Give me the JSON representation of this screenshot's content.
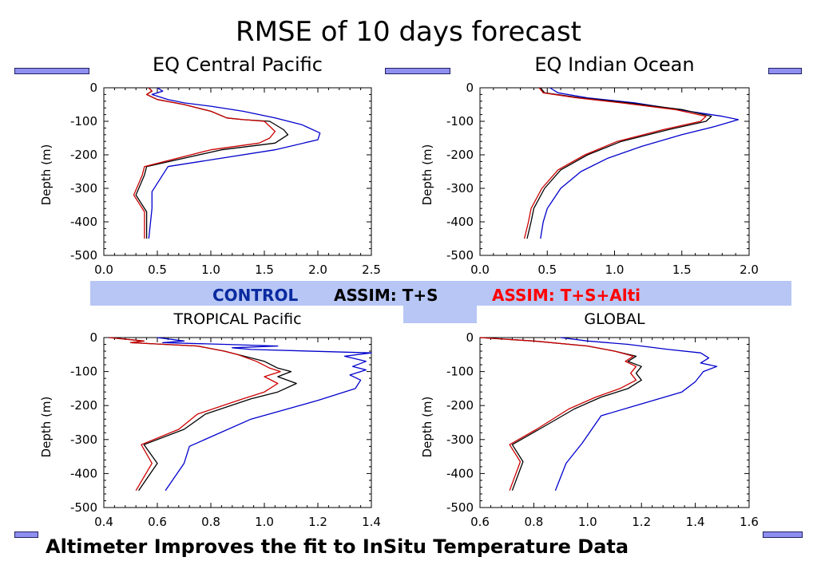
{
  "title": "RMSE of 10 days forecast",
  "legend": {
    "control": "CONTROL",
    "assim_ts": "ASSIM: T+S",
    "assim_alti": "ASSIM: T+S+Alti",
    "colors": {
      "control": "#0000cc",
      "assim_ts": "#000000",
      "assim_alti": "#cc0000"
    }
  },
  "footer": "Altimeter Improves the fit to InSitu Temperature Data",
  "chart_data": [
    {
      "type": "line",
      "title": "EQ Central Pacific",
      "ylabel": "Depth (m)",
      "xlim": [
        0.0,
        2.5
      ],
      "ylim": [
        -500,
        0
      ],
      "xticks": [
        "0.0",
        "0.5",
        "1.0",
        "1.5",
        "2.0",
        "2.5"
      ],
      "yticks": [
        "0",
        "-100",
        "-200",
        "-300",
        "-400",
        "-500"
      ],
      "series": [
        {
          "name": "CONTROL",
          "color": "#0000cc",
          "points": [
            [
              0.5,
              0
            ],
            [
              0.55,
              -10
            ],
            [
              0.45,
              -20
            ],
            [
              0.6,
              -35
            ],
            [
              0.75,
              -45
            ],
            [
              1.0,
              -55
            ],
            [
              1.3,
              -70
            ],
            [
              1.6,
              -90
            ],
            [
              1.85,
              -110
            ],
            [
              2.02,
              -135
            ],
            [
              2.0,
              -155
            ],
            [
              1.6,
              -185
            ],
            [
              0.6,
              -235
            ],
            [
              0.45,
              -310
            ],
            [
              0.45,
              -360
            ],
            [
              0.42,
              -450
            ]
          ]
        },
        {
          "name": "ASSIM: T+S",
          "color": "#000000",
          "points": [
            [
              0.42,
              0
            ],
            [
              0.45,
              -10
            ],
            [
              0.4,
              -20
            ],
            [
              0.5,
              -35
            ],
            [
              0.75,
              -50
            ],
            [
              1.0,
              -70
            ],
            [
              1.15,
              -90
            ],
            [
              1.3,
              -95
            ],
            [
              1.55,
              -100
            ],
            [
              1.68,
              -125
            ],
            [
              1.72,
              -140
            ],
            [
              1.6,
              -165
            ],
            [
              1.1,
              -185
            ],
            [
              0.4,
              -235
            ],
            [
              0.38,
              -260
            ],
            [
              0.3,
              -320
            ],
            [
              0.4,
              -370
            ],
            [
              0.4,
              -450
            ]
          ]
        },
        {
          "name": "ASSIM: T+S+Alti",
          "color": "#cc0000",
          "points": [
            [
              0.42,
              0
            ],
            [
              0.45,
              -10
            ],
            [
              0.4,
              -20
            ],
            [
              0.5,
              -35
            ],
            [
              0.75,
              -50
            ],
            [
              1.0,
              -70
            ],
            [
              1.15,
              -90
            ],
            [
              1.3,
              -95
            ],
            [
              1.5,
              -100
            ],
            [
              1.6,
              -130
            ],
            [
              1.55,
              -150
            ],
            [
              1.45,
              -165
            ],
            [
              1.0,
              -185
            ],
            [
              0.38,
              -235
            ],
            [
              0.36,
              -260
            ],
            [
              0.28,
              -320
            ],
            [
              0.38,
              -370
            ],
            [
              0.38,
              -450
            ]
          ]
        }
      ]
    },
    {
      "type": "line",
      "title": "EQ Indian Ocean",
      "ylabel": "Depth (m)",
      "xlim": [
        0.0,
        2.0
      ],
      "ylim": [
        -500,
        0
      ],
      "xticks": [
        "0.0",
        "0.5",
        "1.0",
        "1.5",
        "2.0"
      ],
      "yticks": [
        "0",
        "-100",
        "-200",
        "-300",
        "-400",
        "-500"
      ],
      "series": [
        {
          "name": "CONTROL",
          "color": "#0000cc",
          "points": [
            [
              0.52,
              0
            ],
            [
              0.58,
              -15
            ],
            [
              0.8,
              -30
            ],
            [
              1.15,
              -45
            ],
            [
              1.55,
              -70
            ],
            [
              1.8,
              -85
            ],
            [
              1.92,
              -95
            ],
            [
              1.75,
              -115
            ],
            [
              1.5,
              -140
            ],
            [
              1.2,
              -175
            ],
            [
              0.95,
              -210
            ],
            [
              0.75,
              -250
            ],
            [
              0.6,
              -300
            ],
            [
              0.5,
              -360
            ],
            [
              0.47,
              -400
            ],
            [
              0.45,
              -450
            ]
          ]
        },
        {
          "name": "ASSIM: T+S",
          "color": "#000000",
          "points": [
            [
              0.45,
              0
            ],
            [
              0.48,
              -15
            ],
            [
              0.75,
              -30
            ],
            [
              1.1,
              -45
            ],
            [
              1.5,
              -65
            ],
            [
              1.72,
              -85
            ],
            [
              1.68,
              -100
            ],
            [
              1.4,
              -125
            ],
            [
              1.05,
              -160
            ],
            [
              0.8,
              -200
            ],
            [
              0.6,
              -245
            ],
            [
              0.48,
              -300
            ],
            [
              0.4,
              -360
            ],
            [
              0.38,
              -400
            ],
            [
              0.35,
              -450
            ]
          ]
        },
        {
          "name": "ASSIM: T+S+Alti",
          "color": "#cc0000",
          "points": [
            [
              0.44,
              0
            ],
            [
              0.47,
              -15
            ],
            [
              0.72,
              -30
            ],
            [
              1.05,
              -45
            ],
            [
              1.45,
              -65
            ],
            [
              1.68,
              -85
            ],
            [
              1.64,
              -100
            ],
            [
              1.36,
              -125
            ],
            [
              1.02,
              -160
            ],
            [
              0.78,
              -200
            ],
            [
              0.58,
              -245
            ],
            [
              0.46,
              -300
            ],
            [
              0.38,
              -360
            ],
            [
              0.36,
              -400
            ],
            [
              0.33,
              -450
            ]
          ]
        }
      ]
    },
    {
      "type": "line",
      "title": "TROPICAL Pacific",
      "ylabel": "Depth (m)",
      "xlim": [
        0.4,
        1.4
      ],
      "ylim": [
        -500,
        0
      ],
      "xticks": [
        "0.4",
        "0.6",
        "0.8",
        "1.0",
        "1.2",
        "1.4"
      ],
      "yticks": [
        "0",
        "-100",
        "-200",
        "-300",
        "-400",
        "-500"
      ],
      "series": [
        {
          "name": "CONTROL",
          "color": "#0000cc",
          "points": [
            [
              0.6,
              0
            ],
            [
              0.7,
              -10
            ],
            [
              0.62,
              -15
            ],
            [
              0.85,
              -20
            ],
            [
              1.05,
              -25
            ],
            [
              0.88,
              -30
            ],
            [
              0.95,
              -35
            ],
            [
              1.4,
              -45
            ],
            [
              1.3,
              -55
            ],
            [
              1.38,
              -70
            ],
            [
              1.33,
              -85
            ],
            [
              1.38,
              -95
            ],
            [
              1.32,
              -110
            ],
            [
              1.36,
              -125
            ],
            [
              1.34,
              -150
            ],
            [
              1.2,
              -185
            ],
            [
              0.95,
              -240
            ],
            [
              0.72,
              -320
            ],
            [
              0.7,
              -370
            ],
            [
              0.63,
              -450
            ]
          ]
        },
        {
          "name": "ASSIM: T+S",
          "color": "#000000",
          "points": [
            [
              0.42,
              0
            ],
            [
              0.55,
              -10
            ],
            [
              0.5,
              -15
            ],
            [
              0.75,
              -25
            ],
            [
              0.85,
              -40
            ],
            [
              0.9,
              -50
            ],
            [
              1.0,
              -70
            ],
            [
              1.05,
              -90
            ],
            [
              1.1,
              -100
            ],
            [
              1.05,
              -115
            ],
            [
              1.12,
              -135
            ],
            [
              1.05,
              -160
            ],
            [
              0.95,
              -180
            ],
            [
              0.78,
              -225
            ],
            [
              0.7,
              -270
            ],
            [
              0.55,
              -315
            ],
            [
              0.6,
              -370
            ],
            [
              0.53,
              -450
            ]
          ]
        },
        {
          "name": "ASSIM: T+S+Alti",
          "color": "#cc0000",
          "points": [
            [
              0.42,
              0
            ],
            [
              0.55,
              -10
            ],
            [
              0.5,
              -15
            ],
            [
              0.75,
              -25
            ],
            [
              0.85,
              -40
            ],
            [
              0.9,
              -50
            ],
            [
              0.97,
              -70
            ],
            [
              1.02,
              -90
            ],
            [
              1.06,
              -100
            ],
            [
              1.0,
              -115
            ],
            [
              1.05,
              -135
            ],
            [
              1.0,
              -160
            ],
            [
              0.92,
              -180
            ],
            [
              0.75,
              -225
            ],
            [
              0.68,
              -270
            ],
            [
              0.54,
              -315
            ],
            [
              0.58,
              -370
            ],
            [
              0.52,
              -450
            ]
          ]
        }
      ]
    },
    {
      "type": "line",
      "title": "GLOBAL",
      "ylabel": "Depth (m)",
      "xlim": [
        0.6,
        1.6
      ],
      "ylim": [
        -500,
        0
      ],
      "xticks": [
        "0.6",
        "0.8",
        "1.0",
        "1.2",
        "1.4",
        "1.6"
      ],
      "yticks": [
        "0",
        "-100",
        "-200",
        "-300",
        "-400",
        "-500"
      ],
      "series": [
        {
          "name": "CONTROL",
          "color": "#0000cc",
          "points": [
            [
              0.9,
              0
            ],
            [
              1.0,
              -10
            ],
            [
              1.15,
              -20
            ],
            [
              1.3,
              -35
            ],
            [
              1.42,
              -45
            ],
            [
              1.45,
              -60
            ],
            [
              1.42,
              -75
            ],
            [
              1.48,
              -85
            ],
            [
              1.43,
              -100
            ],
            [
              1.4,
              -130
            ],
            [
              1.35,
              -160
            ],
            [
              1.2,
              -195
            ],
            [
              1.05,
              -230
            ],
            [
              0.98,
              -310
            ],
            [
              0.92,
              -370
            ],
            [
              0.88,
              -450
            ]
          ]
        },
        {
          "name": "ASSIM: T+S",
          "color": "#000000",
          "points": [
            [
              0.6,
              0
            ],
            [
              0.8,
              -10
            ],
            [
              1.0,
              -25
            ],
            [
              1.1,
              -40
            ],
            [
              1.18,
              -55
            ],
            [
              1.15,
              -70
            ],
            [
              1.2,
              -85
            ],
            [
              1.18,
              -105
            ],
            [
              1.2,
              -125
            ],
            [
              1.15,
              -150
            ],
            [
              1.05,
              -175
            ],
            [
              0.95,
              -210
            ],
            [
              0.82,
              -270
            ],
            [
              0.72,
              -315
            ],
            [
              0.76,
              -365
            ],
            [
              0.72,
              -450
            ]
          ]
        },
        {
          "name": "ASSIM: T+S+Alti",
          "color": "#cc0000",
          "points": [
            [
              0.6,
              0
            ],
            [
              0.8,
              -10
            ],
            [
              1.0,
              -25
            ],
            [
              1.1,
              -40
            ],
            [
              1.17,
              -55
            ],
            [
              1.14,
              -70
            ],
            [
              1.18,
              -85
            ],
            [
              1.16,
              -105
            ],
            [
              1.18,
              -125
            ],
            [
              1.12,
              -150
            ],
            [
              1.03,
              -175
            ],
            [
              0.93,
              -210
            ],
            [
              0.81,
              -270
            ],
            [
              0.71,
              -315
            ],
            [
              0.75,
              -365
            ],
            [
              0.71,
              -450
            ]
          ]
        }
      ]
    }
  ]
}
